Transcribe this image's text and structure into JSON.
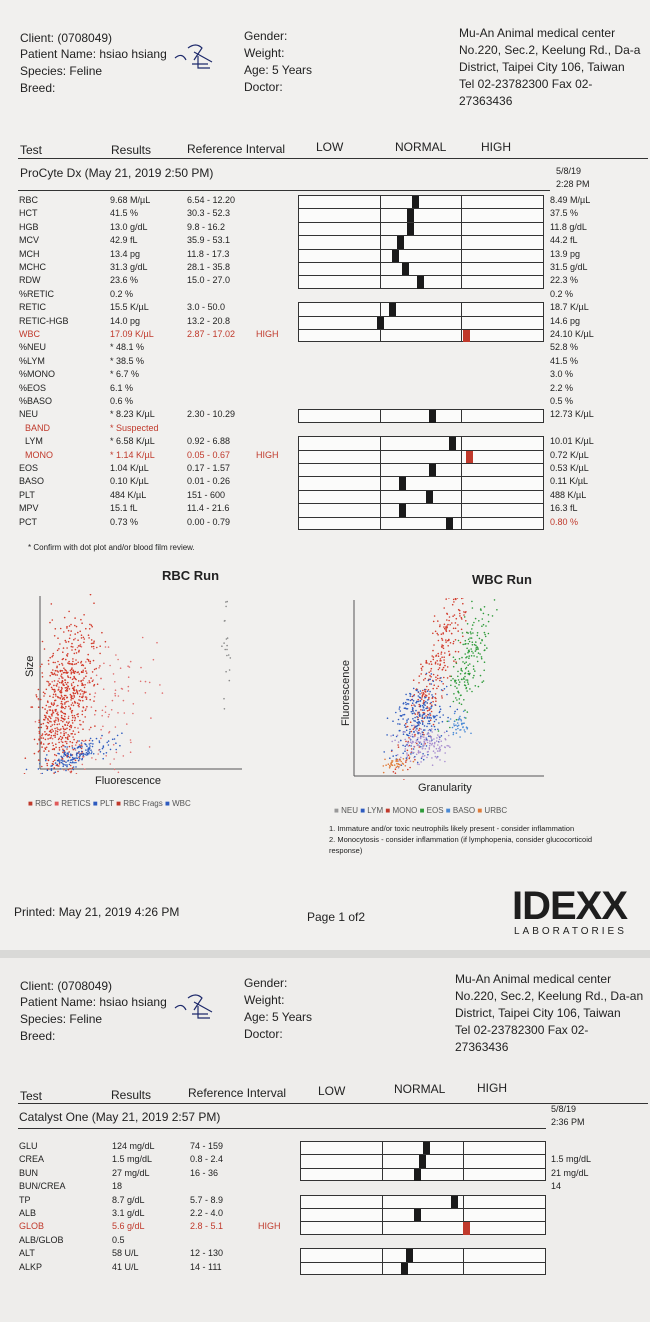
{
  "page1": {
    "client": "Client:  (0708049)",
    "patient": "Patient Name: hsiao hsiang",
    "species": "Species: Feline",
    "breed": "Breed:",
    "gender": "Gender:",
    "weight": "Weight:",
    "age": "Age: 5 Years",
    "doctor": "Doctor:",
    "clinic": [
      "Mu-An Animal medical center",
      "No.220, Sec.2, Keelung Rd., Da-a",
      "District, Taipei City 106, Taiwan",
      "Tel 02-23782300  Fax 02-",
      "27363436"
    ],
    "col_test": "Test",
    "col_results": "Results",
    "col_ref": "Reference Interval",
    "col_low": "LOW",
    "col_normal": "NORMAL",
    "col_high": "HIGH",
    "section": "ProCyte Dx (May 21, 2019 2:50 PM)",
    "prev_date": "5/8/19",
    "prev_time": "2:28 PM",
    "rows": [
      {
        "t": "RBC",
        "r": "9.68 M/µL",
        "ref": "6.54 - 12.20",
        "flag": "",
        "prev": "8.49 M/µL",
        "pos": 0.47,
        "hi": false
      },
      {
        "t": "HCT",
        "r": "41.5 %",
        "ref": "30.3 - 52.3",
        "flag": "",
        "prev": "37.5 %",
        "pos": 0.45,
        "hi": false
      },
      {
        "t": "HGB",
        "r": "13.0 g/dL",
        "ref": "9.8 - 16.2",
        "flag": "",
        "prev": "11.8 g/dL",
        "pos": 0.45,
        "hi": false
      },
      {
        "t": "MCV",
        "r": "42.9 fL",
        "ref": "35.9 - 53.1",
        "flag": "",
        "prev": "44.2 fL",
        "pos": 0.41,
        "hi": false
      },
      {
        "t": "MCH",
        "r": "13.4 pg",
        "ref": "11.8 - 17.3",
        "flag": "",
        "prev": "13.9 pg",
        "pos": 0.39,
        "hi": false
      },
      {
        "t": "MCHC",
        "r": "31.3 g/dL",
        "ref": "28.1 - 35.8",
        "flag": "",
        "prev": "31.5 g/dL",
        "pos": 0.43,
        "hi": false
      },
      {
        "t": "RDW",
        "r": "23.6 %",
        "ref": "15.0 - 27.0",
        "flag": "",
        "prev": "22.3 %",
        "pos": 0.49,
        "hi": false
      },
      {
        "t": "%RETIC",
        "r": "0.2 %",
        "ref": "",
        "flag": "",
        "prev": "0.2 %",
        "pos": null,
        "hi": false
      },
      {
        "t": "RETIC",
        "r": "15.5 K/µL",
        "ref": "3.0 - 50.0",
        "flag": "",
        "prev": "18.7 K/µL",
        "pos": 0.38,
        "hi": false
      },
      {
        "t": "RETIC-HGB",
        "r": "14.0 pg",
        "ref": "13.2 - 20.8",
        "flag": "",
        "prev": "14.6 pg",
        "pos": 0.33,
        "hi": false
      },
      {
        "t": "WBC",
        "r": "17.09 K/µL",
        "ref": "2.87 - 17.02",
        "flag": "HIGH",
        "prev": "24.10 K/µL",
        "pos": 0.68,
        "hi": true,
        "red": true
      },
      {
        "t": "%NEU",
        "r": "* 48.1 %",
        "ref": "",
        "flag": "",
        "prev": "52.8 %",
        "pos": null,
        "hi": false
      },
      {
        "t": "%LYM",
        "r": "* 38.5 %",
        "ref": "",
        "flag": "",
        "prev": "41.5 %",
        "pos": null,
        "hi": false
      },
      {
        "t": "%MONO",
        "r": "* 6.7 %",
        "ref": "",
        "flag": "",
        "prev": "3.0 %",
        "pos": null,
        "hi": false
      },
      {
        "t": "%EOS",
        "r": "6.1 %",
        "ref": "",
        "flag": "",
        "prev": "2.2 %",
        "pos": null,
        "hi": false
      },
      {
        "t": "%BASO",
        "r": "0.6 %",
        "ref": "",
        "flag": "",
        "prev": "0.5 %",
        "pos": null,
        "hi": false
      },
      {
        "t": "NEU",
        "r": "* 8.23 K/µL",
        "ref": "2.30 - 10.29",
        "flag": "",
        "prev": "12.73 K/µL",
        "pos": 0.54,
        "hi": false
      },
      {
        "t": "BAND",
        "r": "* Suspected",
        "ref": "",
        "flag": "",
        "prev": "",
        "pos": null,
        "hi": false,
        "red": true,
        "indent": true
      },
      {
        "t": "LYM",
        "r": "* 6.58 K/µL",
        "ref": "0.92 - 6.88",
        "flag": "",
        "prev": "10.01 K/µL",
        "pos": 0.62,
        "hi": false,
        "indent": true
      },
      {
        "t": "MONO",
        "r": "* 1.14 K/µL",
        "ref": "0.05 - 0.67",
        "flag": "HIGH",
        "prev": "0.72 K/µL",
        "pos": 0.69,
        "hi": true,
        "red": true,
        "indent": true
      },
      {
        "t": "EOS",
        "r": "1.04 K/µL",
        "ref": "0.17 - 1.57",
        "flag": "",
        "prev": "0.53 K/µL",
        "pos": 0.54,
        "hi": false
      },
      {
        "t": "BASO",
        "r": "0.10 K/µL",
        "ref": "0.01 - 0.26",
        "flag": "",
        "prev": "0.11 K/µL",
        "pos": 0.42,
        "hi": false
      },
      {
        "t": "PLT",
        "r": "484 K/µL",
        "ref": "151 - 600",
        "flag": "",
        "prev": "488 K/µL",
        "pos": 0.53,
        "hi": false
      },
      {
        "t": "MPV",
        "r": "15.1 fL",
        "ref": "11.4 - 21.6",
        "flag": "",
        "prev": "16.3 fL",
        "pos": 0.42,
        "hi": false
      },
      {
        "t": "PCT",
        "r": "0.73 %",
        "ref": "0.00 - 0.79",
        "flag": "",
        "prev": "0.80 %",
        "pos": 0.61,
        "hi": false,
        "prevred": true
      }
    ],
    "footnote": "* Confirm with dot plot and/or blood film review.",
    "rbc_title": "RBC Run",
    "rbc_xlabel": "Fluorescence",
    "rbc_ylabel": "Size",
    "rbc_legend": [
      "RBC",
      "RETICS",
      "PLT",
      "RBC Frags",
      "WBC"
    ],
    "wbc_title": "WBC Run",
    "wbc_xlabel": "Granularity",
    "wbc_ylabel": "Fluorescence",
    "wbc_legend": [
      "NEU",
      "LYM",
      "MONO",
      "EOS",
      "BASO",
      "URBC"
    ],
    "notes": [
      "1. Immature and/or toxic neutrophils likely present - consider inflammation",
      "2. Monocytosis - consider inflammation (if lymphopenia, consider glucocorticoid",
      "response)"
    ],
    "printed": "Printed: May 21, 2019 4:26 PM",
    "page_no": "Page 1 of2",
    "logo": "IDEXX",
    "logo_sub": "LABORATORIES"
  },
  "page2": {
    "client": "Client:  (0708049)",
    "patient": "Patient Name: hsiao hsiang",
    "species": "Species: Feline",
    "breed": "Breed:",
    "gender": "Gender:",
    "weight": "Weight:",
    "age": "Age: 5 Years",
    "doctor": "Doctor:",
    "clinic": [
      "Mu-An Animal medical center",
      "No.220, Sec.2, Keelung Rd., Da-an",
      "District, Taipei City 106, Taiwan",
      "Tel 02-23782300  Fax 02-",
      "27363436"
    ],
    "col_test": "Test",
    "col_results": "Results",
    "col_ref": "Reference Interval",
    "col_low": "LOW",
    "col_normal": "NORMAL",
    "col_high": "HIGH",
    "section": "Catalyst One (May 21, 2019 2:57 PM)",
    "prev_date": "5/8/19",
    "prev_time": "2:36 PM",
    "rows": [
      {
        "t": "GLU",
        "r": "124 mg/dL",
        "ref": "74 - 159",
        "flag": "",
        "prev": "",
        "pos": 0.51
      },
      {
        "t": "CREA",
        "r": "1.5 mg/dL",
        "ref": "0.8 - 2.4",
        "flag": "",
        "prev": "1.5 mg/dL",
        "pos": 0.49
      },
      {
        "t": "BUN",
        "r": "27 mg/dL",
        "ref": "16 - 36",
        "flag": "",
        "prev": "21 mg/dL",
        "pos": 0.47
      },
      {
        "t": "BUN/CREA",
        "r": "18",
        "ref": "",
        "flag": "",
        "prev": "14",
        "pos": null
      },
      {
        "t": "TP",
        "r": "8.7 g/dL",
        "ref": "5.7 - 8.9",
        "flag": "",
        "prev": "",
        "pos": 0.62
      },
      {
        "t": "ALB",
        "r": "3.1 g/dL",
        "ref": "2.2 - 4.0",
        "flag": "",
        "prev": "",
        "pos": 0.47
      },
      {
        "t": "GLOB",
        "r": "5.6 g/dL",
        "ref": "2.8 - 5.1",
        "flag": "HIGH",
        "prev": "",
        "pos": 0.67,
        "hi": true,
        "red": true
      },
      {
        "t": "ALB/GLOB",
        "r": "0.5",
        "ref": "",
        "flag": "",
        "prev": "",
        "pos": null
      },
      {
        "t": "ALT",
        "r": "58 U/L",
        "ref": "12 - 130",
        "flag": "",
        "prev": "",
        "pos": 0.44
      },
      {
        "t": "ALKP",
        "r": "41 U/L",
        "ref": "14 - 111",
        "flag": "",
        "prev": "",
        "pos": 0.42
      }
    ]
  }
}
